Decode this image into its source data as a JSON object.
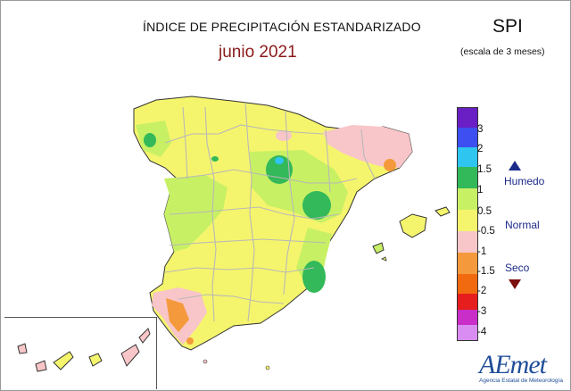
{
  "title": "ÍNDICE DE PRECIPITACIÓN ESTANDARIZADO",
  "subtitle": "junio 2021",
  "index_name": "SPI",
  "scale_note": "(escala de 3 meses)",
  "legend": {
    "ticks": [
      "3",
      "2",
      "1.5",
      "1",
      "0.5",
      "-0.5",
      "-1",
      "-1.5",
      "-2",
      "-3",
      "-4"
    ],
    "colors": [
      "#6a1fc4",
      "#3d4ff0",
      "#2ec5f0",
      "#33b95a",
      "#f5f56d",
      "#f8c6c8",
      "#f49a3c",
      "#f26a10",
      "#e61e1e",
      "#c92ec9",
      "#d98cf2"
    ],
    "wet_label": "Humedo",
    "normal_label": "Normal",
    "dry_label": "Seco"
  },
  "map_colors": {
    "land_normal_dry": "#f5f56d",
    "land_normal_wet": "#c8f064",
    "wet": "#33b95a",
    "very_wet": "#2ec5f0",
    "dry": "#f8c6c8",
    "moderately_dry": "#f49a3c",
    "borders": "#b8b8b8",
    "coast": "#333333"
  },
  "logo": {
    "text": "AEmet",
    "caption": "Agencia Estatal de Meteorología"
  }
}
